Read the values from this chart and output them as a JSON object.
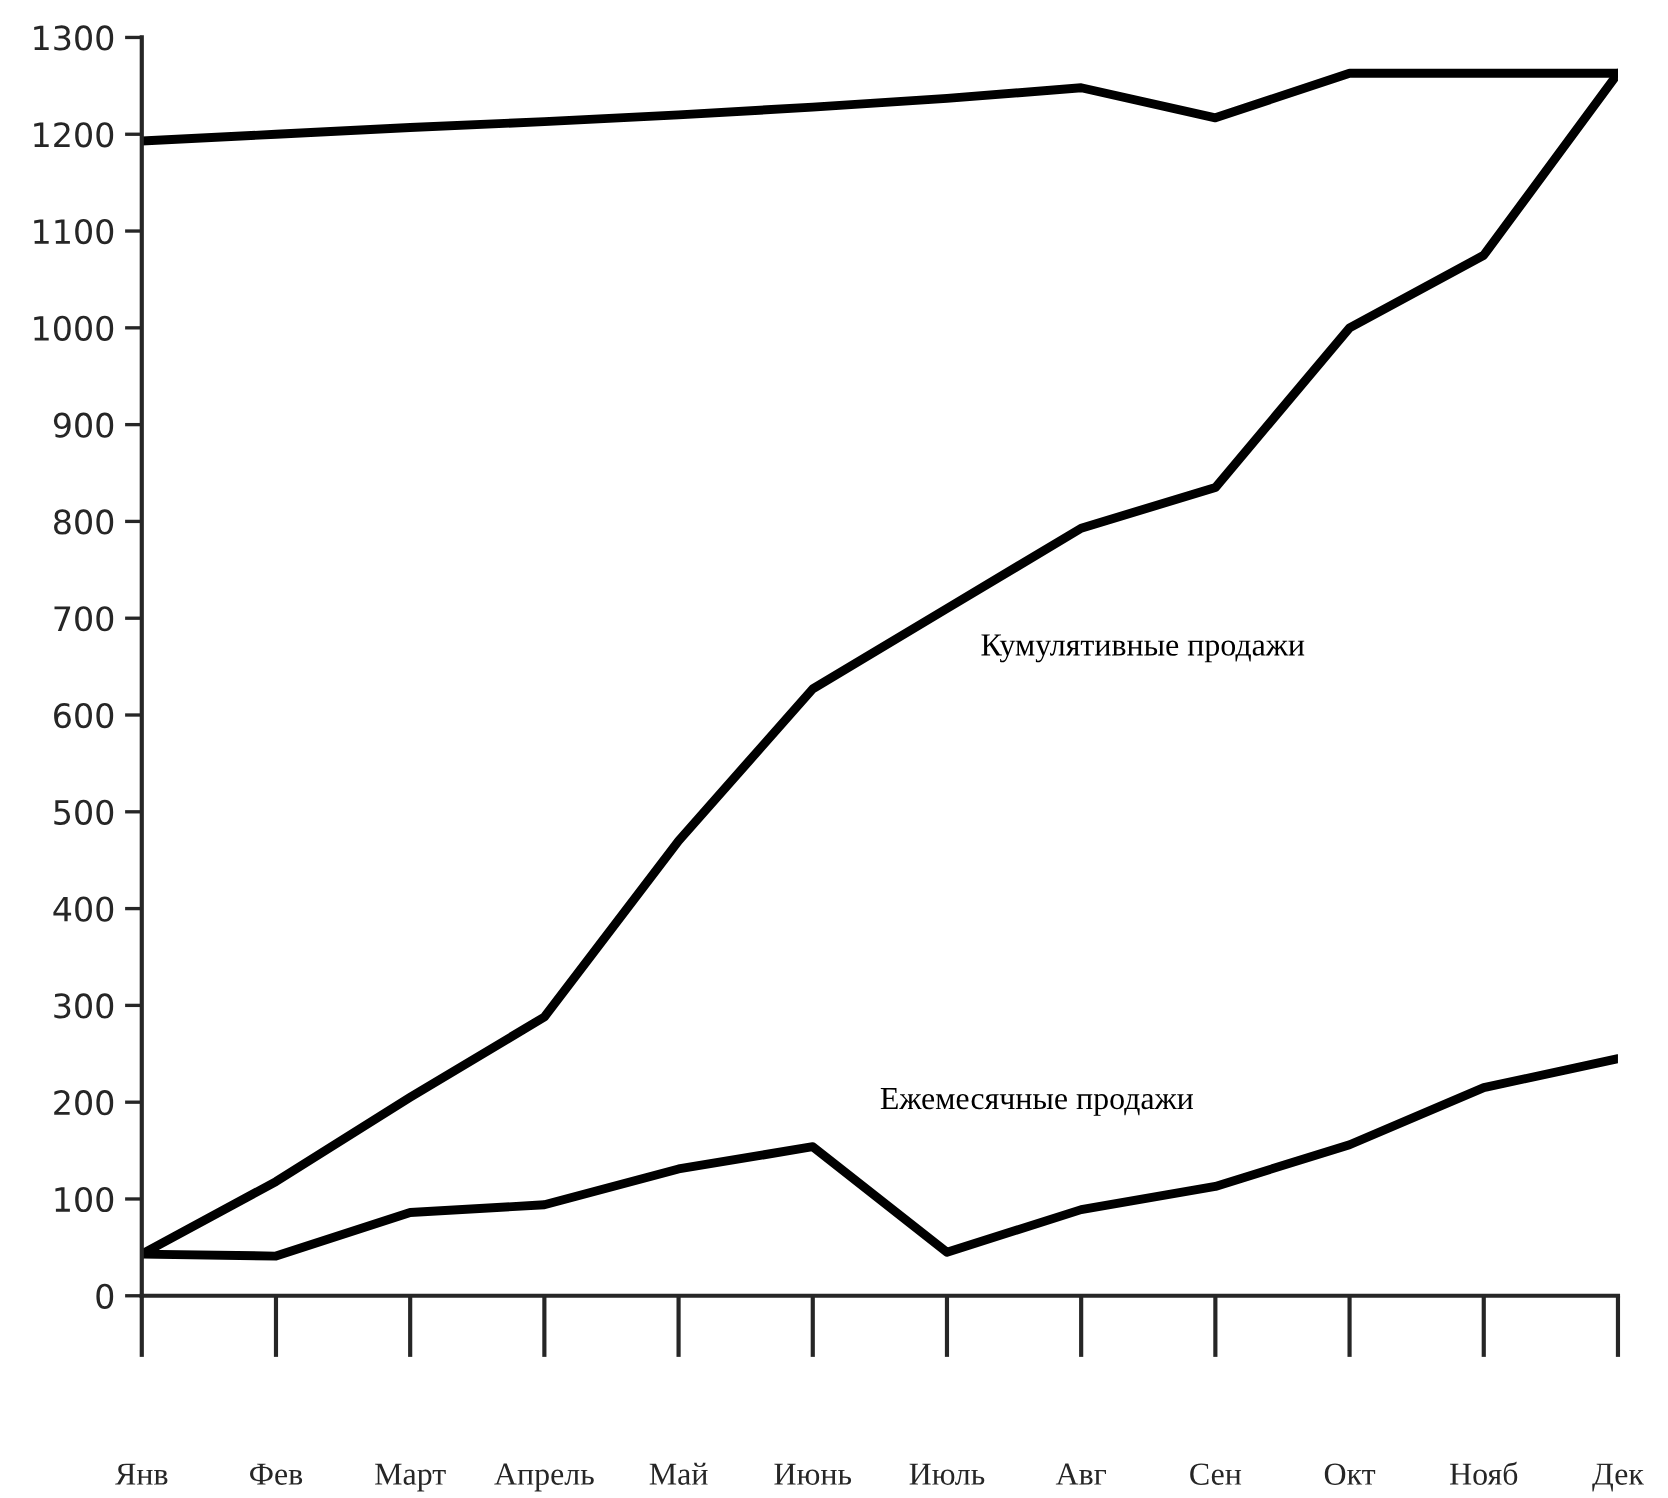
{
  "chart_data": {
    "type": "line",
    "categories": [
      "Янв",
      "Фев",
      "Март",
      "Апрель",
      "Май",
      "Июнь",
      "Июль",
      "Авг",
      "Сен",
      "Окт",
      "Нояб",
      "Дек"
    ],
    "series": [
      {
        "color": "#000000",
        "values": [
          1193,
          1200,
          1207,
          1213,
          1220,
          1228,
          1237,
          1248,
          1217,
          1263,
          1263,
          1263
        ]
      },
      {
        "name": "Кумулятивные продажи",
        "color": "#000000",
        "values": [
          43,
          118,
          205,
          288,
          470,
          627,
          710,
          793,
          835,
          1000,
          1075,
          1263
        ]
      },
      {
        "name": "Ежемесячные продажи",
        "color": "#000000",
        "values": [
          43,
          41,
          86,
          94,
          131,
          154,
          45,
          89,
          113,
          156,
          215,
          245
        ]
      }
    ],
    "ylim": [
      0,
      1300
    ],
    "yticks": [
      0,
      100,
      200,
      300,
      400,
      500,
      600,
      700,
      800,
      900,
      1000,
      1100,
      1200,
      1300
    ],
    "grid": false,
    "legend": false,
    "marker": "none",
    "line_style": "solid"
  }
}
